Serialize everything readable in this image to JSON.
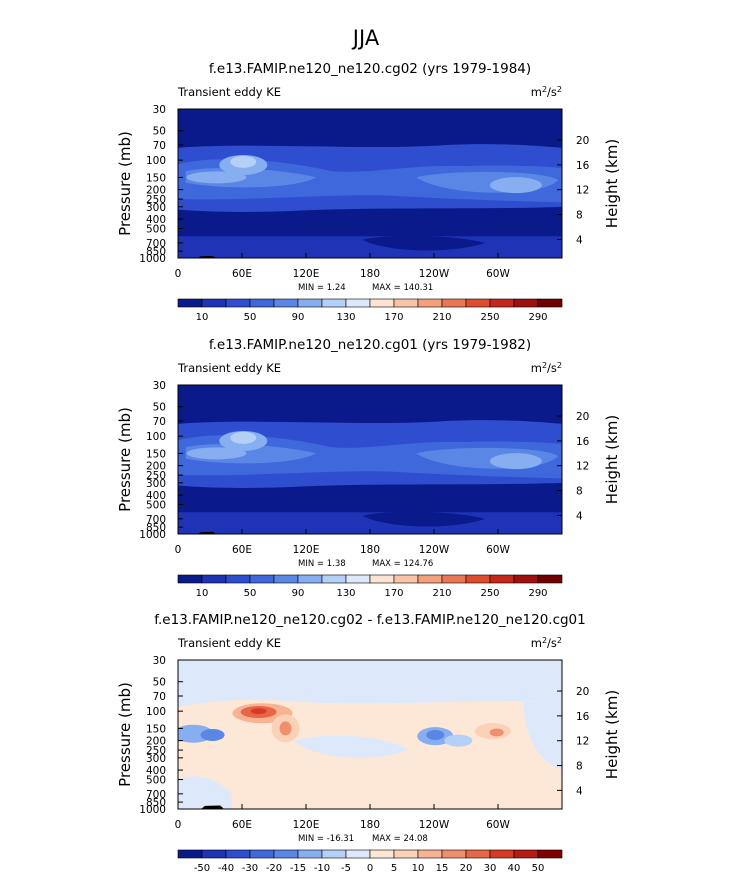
{
  "figure": {
    "title": "JJA"
  },
  "yaxis_ticks": [
    "30",
    "50",
    "70",
    "100",
    "150",
    "200",
    "250",
    "300",
    "400",
    "500",
    "700",
    "850",
    "1000"
  ],
  "xaxis_ticks": [
    "0",
    "60E",
    "120E",
    "180",
    "120W",
    "60W"
  ],
  "height_ticks": [
    "20",
    "16",
    "12",
    "8",
    "4"
  ],
  "chart_data": [
    {
      "type": "heatmap",
      "title": "f.e13.FAMIP.ne120_ne120.cg02 (yrs 1979-1984)",
      "left_label": "Transient eddy KE",
      "units_label": "m",
      "units_exp1": "2",
      "units_mid": "/s",
      "units_exp2": "2",
      "ylabel": "Pressure (mb)",
      "y2label": "Height (km)",
      "min_text": "MIN =    1.24",
      "max_text": "MAX = 140.31",
      "colorbar_labels": [
        "10",
        "50",
        "90",
        "130",
        "170",
        "210",
        "250",
        "290"
      ],
      "colorbar_colors": [
        "#0b1a8a",
        "#1f33b7",
        "#2f4ecf",
        "#3e68dc",
        "#5a86e6",
        "#86aef0",
        "#b4d0f7",
        "#dde9fb",
        "#fde3d1",
        "#f9c3a6",
        "#f3a07d",
        "#ea7654",
        "#df4c30",
        "#c7261b",
        "#9f0f0f",
        "#6f0000"
      ],
      "min": 1.24,
      "max": 140.31
    },
    {
      "type": "heatmap",
      "title": "f.e13.FAMIP.ne120_ne120.cg01 (yrs 1979-1982)",
      "left_label": "Transient eddy KE",
      "units_label": "m",
      "units_exp1": "2",
      "units_mid": "/s",
      "units_exp2": "2",
      "ylabel": "Pressure (mb)",
      "y2label": "Height (km)",
      "min_text": "MIN =    1.38",
      "max_text": "MAX = 124.76",
      "colorbar_labels": [
        "10",
        "50",
        "90",
        "130",
        "170",
        "210",
        "250",
        "290"
      ],
      "colorbar_colors": [
        "#0b1a8a",
        "#1f33b7",
        "#2f4ecf",
        "#3e68dc",
        "#5a86e6",
        "#86aef0",
        "#b4d0f7",
        "#dde9fb",
        "#fde3d1",
        "#f9c3a6",
        "#f3a07d",
        "#ea7654",
        "#df4c30",
        "#c7261b",
        "#9f0f0f",
        "#6f0000"
      ],
      "min": 1.38,
      "max": 124.76
    },
    {
      "type": "heatmap",
      "title": "f.e13.FAMIP.ne120_ne120.cg02 - f.e13.FAMIP.ne120_ne120.cg01",
      "left_label": "Transient eddy KE",
      "units_label": "m",
      "units_exp1": "2",
      "units_mid": "/s",
      "units_exp2": "2",
      "ylabel": "Pressure (mb)",
      "y2label": "Height (km)",
      "min_text": "MIN = -16.31",
      "max_text": "MAX =  24.08",
      "colorbar_labels": [
        "-50",
        "-40",
        "-30",
        "-20",
        "-15",
        "-10",
        "-5",
        "0",
        "5",
        "10",
        "15",
        "20",
        "30",
        "40",
        "50"
      ],
      "colorbar_colors": [
        "#0b1a8a",
        "#1f33b7",
        "#2f4ecf",
        "#3e68dc",
        "#5a86e6",
        "#86aef0",
        "#b4d0f7",
        "#dde9fb",
        "#fde8d8",
        "#fbd1b8",
        "#f7b394",
        "#f08f6c",
        "#e66645",
        "#d93a26",
        "#b61b14",
        "#7f0000"
      ],
      "min": -16.31,
      "max": 24.08
    }
  ]
}
